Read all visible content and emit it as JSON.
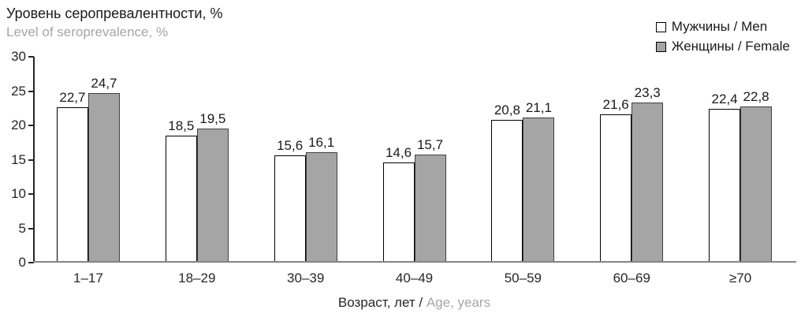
{
  "title": {
    "line1": "Уровень серопревалентности, %",
    "line2": "Level of seroprevalence, %"
  },
  "legend": {
    "items": [
      {
        "key": "men",
        "label": "Мужчины / Men"
      },
      {
        "key": "women",
        "label": "Женщины / Female"
      }
    ]
  },
  "xaxis_title": {
    "ru_part": "Возраст, лет / ",
    "en_part": "Age, years"
  },
  "colors": {
    "men_fill": "#ffffff",
    "men_border": "#000000",
    "women_fill": "#a5a5a5",
    "women_border": "#404040",
    "axis": "#262626",
    "baseline": "#848484",
    "gray_text": "#a6a6a6",
    "black_text": "#1a1a1a"
  },
  "chart_data": {
    "type": "bar",
    "title": "Уровень серопревалентности, % / Level of seroprevalence, %",
    "xlabel": "Возраст, лет / Age, years",
    "ylabel": "Уровень серопревалентности, %",
    "categories": [
      "1–17",
      "18–29",
      "30–39",
      "40–49",
      "50–59",
      "60–69",
      "≥70"
    ],
    "series": [
      {
        "key": "men",
        "name": "Мужчины / Men",
        "values": [
          22.7,
          18.5,
          15.6,
          14.6,
          20.8,
          21.6,
          22.4
        ],
        "labels": [
          "22,7",
          "18,5",
          "15,6",
          "14,6",
          "20,8",
          "21,6",
          "22,4"
        ]
      },
      {
        "key": "women",
        "name": "Женщины / Female",
        "values": [
          24.7,
          19.5,
          16.1,
          15.7,
          21.1,
          23.3,
          22.8
        ],
        "labels": [
          "24,7",
          "19,5",
          "16,1",
          "15,7",
          "21,1",
          "23,3",
          "22,8"
        ]
      }
    ],
    "ylim": [
      0,
      30
    ],
    "yticks": [
      0,
      5,
      10,
      15,
      20,
      25,
      30
    ],
    "grid": false,
    "legend_position": "top-right"
  }
}
